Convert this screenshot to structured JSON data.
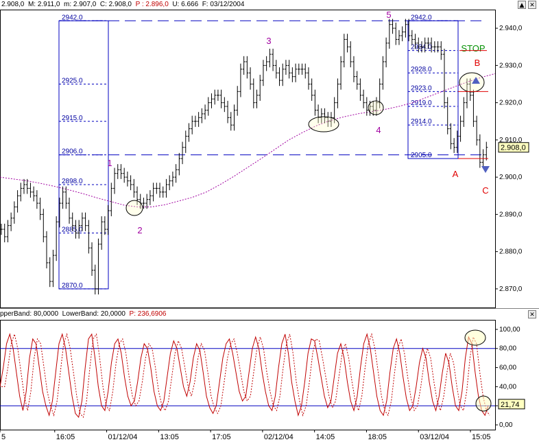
{
  "header": {
    "price": [
      {
        "label": "",
        "value": "2.908,0",
        "cls": "v"
      },
      {
        "label": "M: ",
        "value": "2.911,0",
        "cls": "v"
      },
      {
        "label": "m: ",
        "value": "2.907,0",
        "cls": "v"
      },
      {
        "label": "C: ",
        "value": "2.908,0",
        "cls": "v"
      },
      {
        "label": "P : ",
        "value": "2.896,0",
        "cls": "neg"
      },
      {
        "label": "U: ",
        "value": "6.666",
        "cls": "v"
      },
      {
        "label": "F: ",
        "value": "03/12/2004",
        "cls": "v"
      }
    ],
    "osc": [
      {
        "label": "pperBand: ",
        "value": "80,0000"
      },
      {
        "label": "LowerBand: ",
        "value": "20,0000"
      },
      {
        "label": "P: ",
        "value": "236,6906",
        "cls": "neg"
      }
    ]
  },
  "window_buttons": {
    "scroll_up": "▲",
    "close": "✕"
  },
  "chart_data": [
    {
      "type": "line",
      "panel": "price",
      "ylim": [
        2865,
        2945
      ],
      "ytick_labels": [
        "2.940,0",
        "2.930,0",
        "2.920,0",
        "2.910,0",
        "2.900,0",
        "2.890,0",
        "2.880,0",
        "2.870,0"
      ],
      "yticks": [
        2940,
        2930,
        2920,
        2910,
        2900,
        2890,
        2880,
        2870
      ],
      "last_value_label": "2.908,0",
      "last_value": 2908,
      "series": [
        {
          "role": "price",
          "color": "#000000",
          "values": [
            2886,
            2884,
            2887,
            2889,
            2892,
            2895,
            2897,
            2898,
            2897,
            2896,
            2895,
            2893,
            2890,
            2884,
            2877,
            2872,
            2879,
            2888,
            2893,
            2896,
            2893,
            2889,
            2887,
            2885,
            2887,
            2889,
            2887,
            2881,
            2875,
            2870,
            2882,
            2888,
            2886,
            2891,
            2897,
            2901,
            2902,
            2901,
            2900,
            2899,
            2898,
            2896,
            2894,
            2893,
            2893,
            2894,
            2895,
            2897,
            2897,
            2896,
            2896,
            2898,
            2899,
            2900,
            2902,
            2905,
            2908,
            2911,
            2913,
            2915,
            2915,
            2916,
            2917,
            2918,
            2920,
            2921,
            2922,
            2922,
            2920,
            2919,
            2916,
            2914,
            2918,
            2923,
            2929,
            2931,
            2928,
            2925,
            2920,
            2922,
            2926,
            2930,
            2931,
            2933,
            2930,
            2928,
            2926,
            2929,
            2930,
            2928,
            2927,
            2929,
            2929,
            2929,
            2928,
            2925,
            2922,
            2918,
            2916,
            2917,
            2916,
            2915,
            2916,
            2920,
            2925,
            2931,
            2937,
            2935,
            2931,
            2927,
            2925,
            2922,
            2920,
            2918,
            2919,
            2918,
            2920,
            2925,
            2931,
            2936,
            2941,
            2940,
            2937,
            2938,
            2939,
            2941,
            2938,
            2937,
            2936,
            2935,
            2935,
            2936,
            2936,
            2935,
            2935,
            2935,
            2933,
            2920,
            2913,
            2909,
            2908,
            2911,
            2915,
            2920,
            2925,
            2922,
            2915,
            2910,
            2904,
            2906,
            2908
          ]
        },
        {
          "role": "moving_average",
          "color": "#a000a0",
          "values": [
            2900,
            2899.5,
            2899,
            2898.3,
            2897.5,
            2896.6,
            2895.6,
            2894.5,
            2893.5,
            2892.5,
            2892,
            2892,
            2892.6,
            2893.6,
            2894.6,
            2896,
            2898,
            2900.2,
            2902.6,
            2905,
            2907.5,
            2910,
            2912,
            2913.8,
            2915.2,
            2916.2,
            2917,
            2917.6,
            2918.2,
            2919,
            2920,
            2921.4,
            2922.8,
            2924.2,
            2925.6,
            2926.8,
            2927.8
          ]
        }
      ],
      "hlines": [
        {
          "value": 2942,
          "style": "dash",
          "color": "#0000c0",
          "label": "2942.0"
        },
        {
          "value": 2906,
          "style": "dash",
          "color": "#0000c0",
          "label": ""
        }
      ],
      "fib_left": [
        {
          "value": 2942,
          "label": "2942.0"
        },
        {
          "value": 2925,
          "label": "2925.0"
        },
        {
          "value": 2915,
          "label": "2915.0"
        },
        {
          "value": 2906,
          "label": "2906.0"
        },
        {
          "value": 2898,
          "label": "2898.0"
        },
        {
          "value": 2885,
          "label": "2885.0"
        },
        {
          "value": 2870,
          "label": "2870.0"
        }
      ],
      "fib_right": [
        {
          "value": 2942,
          "label": "2942.0"
        },
        {
          "value": 2934,
          "label": "2934.0"
        },
        {
          "value": 2928,
          "label": "2928.0"
        },
        {
          "value": 2923,
          "label": "2923.0"
        },
        {
          "value": 2919,
          "label": "2919.0"
        },
        {
          "value": 2914,
          "label": "2914.0"
        },
        {
          "value": 2905,
          "label": "2905.0"
        }
      ],
      "annotations": [
        {
          "text": "1",
          "color": "#a000a0"
        },
        {
          "text": "2",
          "color": "#a000a0"
        },
        {
          "text": "3",
          "color": "#a000a0"
        },
        {
          "text": "4",
          "color": "#a000a0"
        },
        {
          "text": "5",
          "color": "#a000a0"
        },
        {
          "text": "A",
          "color": "#e00000"
        },
        {
          "text": "B",
          "color": "#e00000"
        },
        {
          "text": "C",
          "color": "#e00000"
        },
        {
          "text": "STOP",
          "color": "#009000"
        }
      ]
    },
    {
      "type": "line",
      "panel": "oscillator",
      "ylim": [
        -5,
        110
      ],
      "ytick_labels": [
        "100,00",
        "80,00",
        "60,00",
        "40,00",
        "20,00",
        "0,00"
      ],
      "yticks": [
        100,
        80,
        60,
        40,
        20,
        0
      ],
      "last_value_label": "21,74",
      "last_value": 21.74,
      "bands": [
        80,
        20
      ],
      "series": [
        {
          "role": "k",
          "color": "#c00000",
          "values": [
            40,
            60,
            85,
            95,
            80,
            55,
            30,
            15,
            35,
            70,
            90,
            85,
            60,
            35,
            20,
            10,
            25,
            55,
            85,
            95,
            80,
            55,
            30,
            12,
            8,
            25,
            60,
            90,
            95,
            70,
            40,
            20,
            15,
            35,
            65,
            85,
            90,
            75,
            50,
            30,
            20,
            25,
            45,
            70,
            85,
            80,
            60,
            35,
            20,
            15,
            25,
            50,
            75,
            88,
            80,
            60,
            40,
            30,
            45,
            70,
            85,
            78,
            55,
            30,
            18,
            12,
            20,
            45,
            70,
            85,
            90,
            75,
            55,
            35,
            25,
            30,
            55,
            80,
            92,
            80,
            55,
            35,
            20,
            15,
            30,
            60,
            85,
            95,
            75,
            45,
            25,
            10,
            20,
            45,
            75,
            90,
            88,
            70,
            50,
            30,
            18,
            25,
            50,
            75,
            85,
            70,
            45,
            25,
            15,
            30,
            60,
            85,
            95,
            80,
            55,
            30,
            15,
            10,
            25,
            55,
            80,
            90,
            75,
            50,
            28,
            15,
            20,
            40,
            65,
            80,
            70,
            45,
            25,
            15,
            30,
            55,
            75,
            65,
            40,
            20,
            15,
            35,
            70,
            92,
            85,
            55,
            30,
            15,
            10,
            20
          ]
        }
      ]
    }
  ],
  "x_axis": {
    "labels": [
      "5",
      "16:05",
      "01/12/04",
      "13:05",
      "17:05",
      "02/12/04",
      "14:05",
      "18:05",
      "03/12/04",
      "15:05"
    ]
  }
}
